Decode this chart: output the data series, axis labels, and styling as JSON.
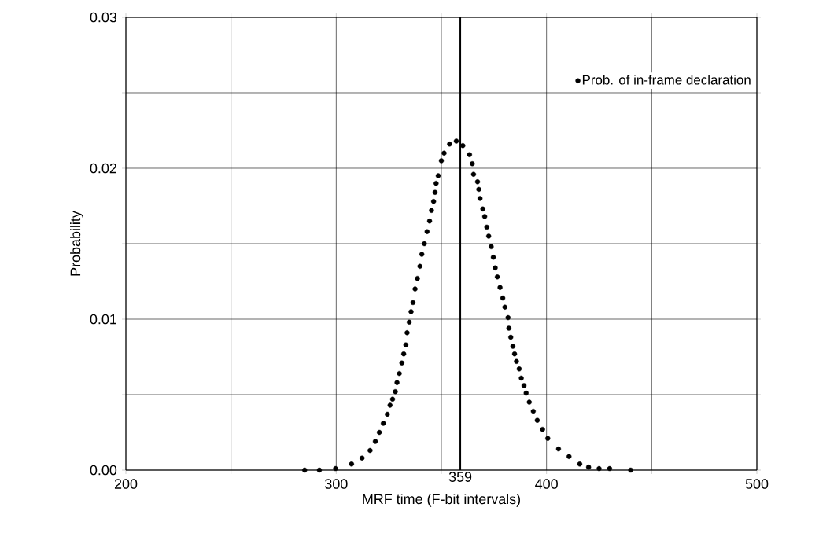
{
  "chart_data": {
    "type": "scatter",
    "xlabel": "MRF time (F-bit intervals)",
    "ylabel": "Probability",
    "series": [
      {
        "name": "Prob. of in-frame declaration",
        "color": "#000000",
        "x": [
          285,
          292,
          299.7,
          307.3,
          312.3,
          316.1,
          318.6,
          320.5,
          322.4,
          324.3,
          325.6,
          326.8,
          328.1,
          328.9,
          330,
          331.2,
          332.1,
          333.1,
          333.7,
          334.7,
          335.6,
          336.5,
          337.5,
          338.6,
          339.8,
          340.7,
          341.9,
          343.2,
          344.4,
          345.3,
          346.3,
          347,
          347.5,
          348.5,
          350,
          351.3,
          353.9,
          357.1,
          360.2,
          363.4,
          364.7,
          365.3,
          367.2,
          367.8,
          368.4,
          369.7,
          370.6,
          371.6,
          372.5,
          373.7,
          374.7,
          375.6,
          376.6,
          377.9,
          379.2,
          380.2,
          381.7,
          382.1,
          383,
          384,
          384.8,
          385.7,
          387,
          388,
          389.3,
          390.3,
          391.8,
          393.7,
          395.6,
          398.1,
          400.6,
          405.7,
          410.7,
          415.8,
          420,
          425,
          430,
          440
        ],
        "values": [
          0,
          0,
          0.0001,
          0.0004,
          0.0008,
          0.0013,
          0.0019,
          0.0025,
          0.0031,
          0.0037,
          0.0043,
          0.0047,
          0.0052,
          0.0058,
          0.0064,
          0.0071,
          0.0077,
          0.0083,
          0.0091,
          0.0098,
          0.0105,
          0.0111,
          0.012,
          0.0127,
          0.0135,
          0.0143,
          0.015,
          0.0158,
          0.0165,
          0.0172,
          0.0178,
          0.0184,
          0.019,
          0.0195,
          0.0205,
          0.021,
          0.0216,
          0.0218,
          0.0215,
          0.0209,
          0.0203,
          0.0196,
          0.0191,
          0.0186,
          0.018,
          0.0173,
          0.0168,
          0.0161,
          0.0155,
          0.0148,
          0.0141,
          0.0134,
          0.0128,
          0.0121,
          0.0114,
          0.0108,
          0.0101,
          0.0094,
          0.0088,
          0.0082,
          0.0077,
          0.0072,
          0.0067,
          0.0061,
          0.0056,
          0.0051,
          0.0045,
          0.0039,
          0.0033,
          0.0027,
          0.0021,
          0.0014,
          0.0009,
          0.0004,
          0.0002,
          0.0001,
          0.0001,
          0
        ]
      }
    ],
    "xlim": [
      200,
      500
    ],
    "ylim": [
      0,
      0.03
    ],
    "xticks": [
      200,
      {
        "value": 250,
        "label": null
      },
      300,
      {
        "value": 350,
        "label": null
      },
      400,
      {
        "value": 450,
        "label": null
      },
      500
    ],
    "yticks": [
      {
        "value": 0,
        "label": "0.00"
      },
      {
        "value": 0.005,
        "label": null
      },
      {
        "value": 0.01,
        "label": "0.01"
      },
      {
        "value": 0.015,
        "label": null
      },
      {
        "value": 0.02,
        "label": "0.02"
      },
      {
        "value": 0.025,
        "label": null
      },
      {
        "value": 0.03,
        "label": "0.03"
      }
    ],
    "ref_lines": [
      {
        "axis": "x",
        "value": 359,
        "label": "359"
      }
    ],
    "grid": true,
    "legend": "top right",
    "marker": "circle"
  }
}
